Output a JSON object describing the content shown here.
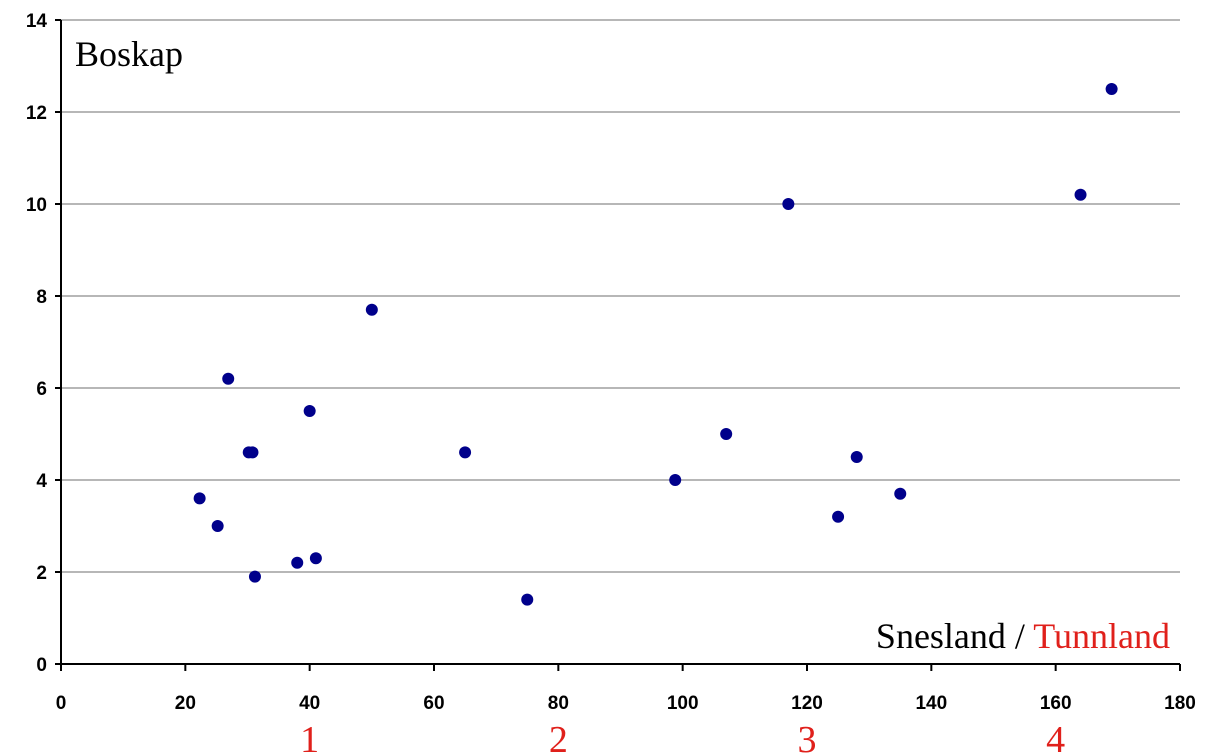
{
  "chart_data": {
    "type": "scatter",
    "title": "",
    "ylabel": "Boskap",
    "xlabel": {
      "part1": "Snesland",
      "separator": " / ",
      "part2": "Tunnland"
    },
    "xlim": [
      0,
      180
    ],
    "ylim": [
      0,
      14
    ],
    "x_ticks": [
      0,
      20,
      40,
      60,
      80,
      100,
      120,
      140,
      160,
      180
    ],
    "y_ticks": [
      0,
      2,
      4,
      6,
      8,
      10,
      12,
      14
    ],
    "secondary_x_labels": [
      {
        "x": 40,
        "label": "1"
      },
      {
        "x": 80,
        "label": "2"
      },
      {
        "x": 120,
        "label": "3"
      },
      {
        "x": 160,
        "label": "4"
      }
    ],
    "grid": "horizontal",
    "legend": "none",
    "series": [
      {
        "color": "#00008b",
        "x": [
          22.3,
          25.2,
          26.9,
          30.2,
          30.8,
          31.2,
          38.0,
          40.0,
          41.0,
          50.0,
          65.0,
          75.0,
          98.8,
          107.0,
          117.0,
          125.0,
          128.0,
          135.0,
          164.0,
          169.0
        ],
        "y": [
          3.6,
          3.0,
          6.2,
          4.6,
          4.6,
          1.9,
          2.2,
          5.5,
          2.3,
          7.7,
          4.6,
          1.4,
          4.0,
          5.0,
          10.0,
          3.2,
          4.5,
          3.7,
          10.2,
          12.5
        ]
      }
    ],
    "colors": {
      "axis": "#000000",
      "grid": "#8c8c8c",
      "secondary_labels": "#e0201b",
      "xlabel_part2": "#e0201b"
    }
  }
}
